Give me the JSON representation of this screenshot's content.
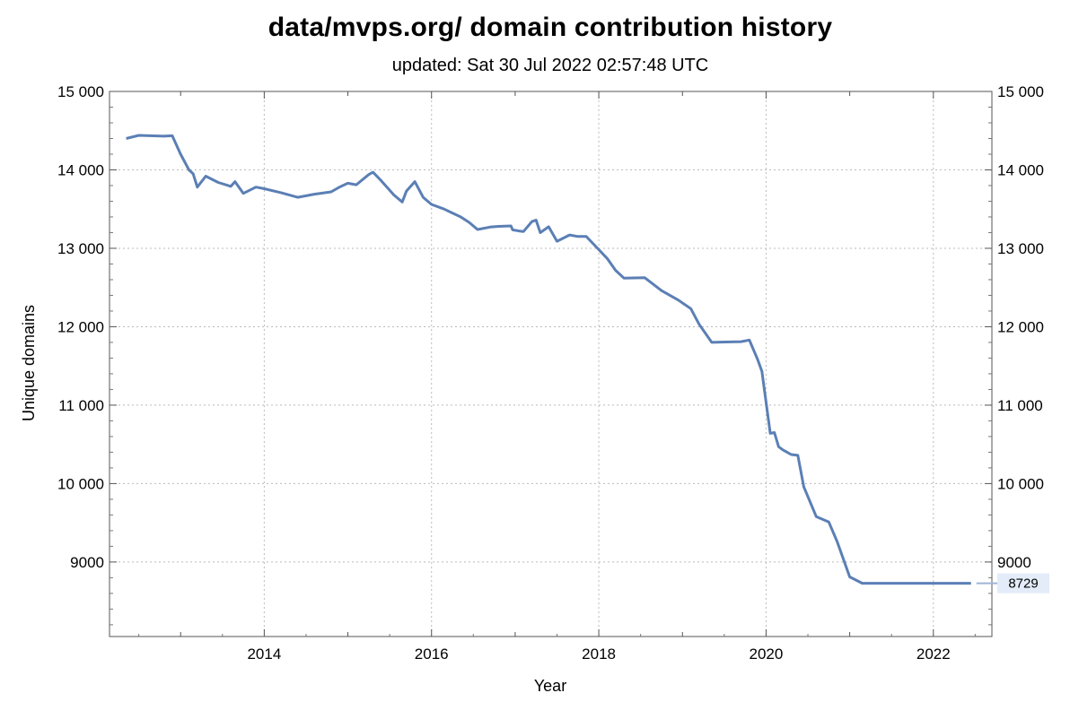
{
  "chart_data": {
    "type": "line",
    "title": "data/mvps.org/ domain contribution history",
    "subtitle": "updated: Sat 30 Jul 2022 02:57:48 UTC",
    "xlabel": "Year",
    "ylabel": "Unique domains",
    "xlim": [
      2012.15,
      2022.7
    ],
    "ylim": [
      8050,
      15000
    ],
    "x_ticks": [
      2014,
      2016,
      2018,
      2020,
      2022
    ],
    "x_tick_labels": [
      "2014",
      "2016",
      "2018",
      "2020",
      "2022"
    ],
    "y_ticks": [
      9000,
      10000,
      11000,
      12000,
      13000,
      14000,
      15000
    ],
    "y_tick_labels": [
      "9000",
      "10 000",
      "11 000",
      "12 000",
      "13 000",
      "14 000",
      "15 000"
    ],
    "grid": true,
    "right_axis_labels": true,
    "line_color": "#5b7fb5",
    "last_value_label": "8729",
    "series": [
      {
        "points": [
          [
            2012.35,
            14400
          ],
          [
            2012.5,
            14440
          ],
          [
            2012.8,
            14430
          ],
          [
            2012.9,
            14435
          ],
          [
            2013.0,
            14200
          ],
          [
            2013.1,
            14000
          ],
          [
            2013.15,
            13950
          ],
          [
            2013.2,
            13780
          ],
          [
            2013.3,
            13920
          ],
          [
            2013.45,
            13840
          ],
          [
            2013.6,
            13790
          ],
          [
            2013.65,
            13850
          ],
          [
            2013.75,
            13700
          ],
          [
            2013.9,
            13780
          ],
          [
            2014.0,
            13760
          ],
          [
            2014.2,
            13710
          ],
          [
            2014.4,
            13650
          ],
          [
            2014.6,
            13690
          ],
          [
            2014.8,
            13720
          ],
          [
            2014.9,
            13780
          ],
          [
            2015.0,
            13830
          ],
          [
            2015.1,
            13810
          ],
          [
            2015.25,
            13940
          ],
          [
            2015.3,
            13970
          ],
          [
            2015.4,
            13860
          ],
          [
            2015.55,
            13680
          ],
          [
            2015.65,
            13590
          ],
          [
            2015.7,
            13730
          ],
          [
            2015.8,
            13850
          ],
          [
            2015.9,
            13650
          ],
          [
            2016.0,
            13560
          ],
          [
            2016.15,
            13500
          ],
          [
            2016.25,
            13450
          ],
          [
            2016.35,
            13400
          ],
          [
            2016.45,
            13330
          ],
          [
            2016.55,
            13240
          ],
          [
            2016.7,
            13270
          ],
          [
            2016.8,
            13280
          ],
          [
            2016.95,
            13285
          ],
          [
            2016.97,
            13235
          ],
          [
            2017.05,
            13220
          ],
          [
            2017.1,
            13215
          ],
          [
            2017.2,
            13340
          ],
          [
            2017.25,
            13360
          ],
          [
            2017.3,
            13200
          ],
          [
            2017.4,
            13275
          ],
          [
            2017.5,
            13090
          ],
          [
            2017.65,
            13170
          ],
          [
            2017.75,
            13150
          ],
          [
            2017.85,
            13150
          ],
          [
            2017.95,
            13040
          ],
          [
            2018.1,
            12870
          ],
          [
            2018.2,
            12720
          ],
          [
            2018.3,
            12620
          ],
          [
            2018.55,
            12625
          ],
          [
            2018.75,
            12460
          ],
          [
            2018.95,
            12340
          ],
          [
            2019.1,
            12230
          ],
          [
            2019.2,
            12030
          ],
          [
            2019.35,
            11800
          ],
          [
            2019.5,
            11805
          ],
          [
            2019.7,
            11810
          ],
          [
            2019.8,
            11830
          ],
          [
            2019.9,
            11580
          ],
          [
            2019.95,
            11430
          ],
          [
            2020.05,
            10640
          ],
          [
            2020.1,
            10650
          ],
          [
            2020.15,
            10470
          ],
          [
            2020.2,
            10430
          ],
          [
            2020.3,
            10370
          ],
          [
            2020.38,
            10360
          ],
          [
            2020.45,
            9960
          ],
          [
            2020.6,
            9580
          ],
          [
            2020.75,
            9510
          ],
          [
            2020.85,
            9260
          ],
          [
            2021.0,
            8810
          ],
          [
            2021.15,
            8729
          ],
          [
            2022.45,
            8729
          ]
        ]
      }
    ]
  }
}
